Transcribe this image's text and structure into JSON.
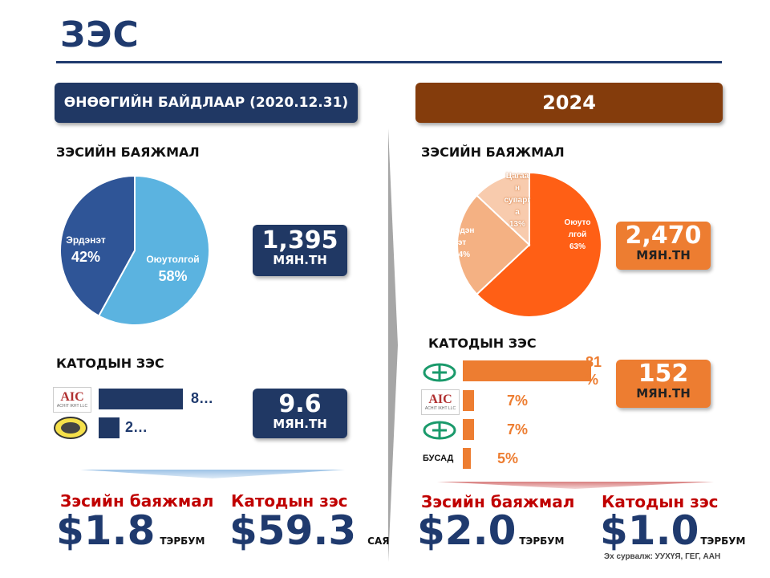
{
  "header": {
    "title": "ЗЭС"
  },
  "left": {
    "banner": "ӨНӨӨГИЙН БАЙДЛААР (2020.12.31)",
    "concentrate_heading": "ЗЭСИЙН БАЯЖМАЛ",
    "concentrate_pie": [
      {
        "name": "Оюутолгой",
        "percent_label": "58%",
        "value": 58,
        "color": "#5bb3e0"
      },
      {
        "name": "Эрдэнэт",
        "percent_label": "42%",
        "value": 42,
        "color": "#2f5597"
      }
    ],
    "concentrate_total": {
      "value": "1,395",
      "unit": "МЯН.ТН"
    },
    "cathode_heading": "КАТОДЫН ЗЭС",
    "cathode_bars": [
      {
        "logo": "AIC",
        "logo_caption": "ACHIT IKHT LLC",
        "label": "8…",
        "value": 80
      },
      {
        "logo": "mining-seal",
        "label": "2…",
        "value": 20
      }
    ],
    "cathode_total": {
      "value": "9.6",
      "unit": "МЯН.ТН"
    },
    "bottom": {
      "concentrate_label": "Зэсийн баяжмал",
      "concentrate_amount": "$1.8",
      "concentrate_unit": "ТЭРБУМ",
      "cathode_label": "Катодын зэс",
      "cathode_amount": "$59.3",
      "cathode_unit": "САЯ"
    }
  },
  "right": {
    "banner": "2024",
    "concentrate_heading": "ЗЭСИЙН БАЯЖМАЛ",
    "concentrate_pie": [
      {
        "name_lines": [
          "Оюуто",
          "лгой"
        ],
        "percent_label": "63%",
        "value": 63,
        "color": "#ff5f15"
      },
      {
        "name_lines": [
          "Эрдэн",
          "эт"
        ],
        "percent_label": "24%",
        "value": 24,
        "color": "#f4b183"
      },
      {
        "name_lines": [
          "Цагаа",
          "н",
          "суварг",
          "а"
        ],
        "percent_label": "13%",
        "value": 13,
        "color": "#f8cbad"
      }
    ],
    "concentrate_total": {
      "value": "2,470",
      "unit": "МЯН.ТН"
    },
    "cathode_heading": "КАТОДЫН ЗЭС",
    "cathode_bars": [
      {
        "logo": "green-logo",
        "label_lines": [
          "81",
          "%"
        ],
        "value": 81
      },
      {
        "logo": "AIC",
        "logo_caption": "ACHIT IKHT LLC",
        "label": "7%",
        "value": 7
      },
      {
        "logo": "green-logo",
        "label": "7%",
        "value": 7
      },
      {
        "logo": "text",
        "logo_text": "БУСАД",
        "label": "5%",
        "value": 5
      }
    ],
    "cathode_total": {
      "value": "152",
      "unit": "МЯН.ТН"
    },
    "bottom": {
      "concentrate_label": "Зэсийн баяжмал",
      "concentrate_amount": "$2.0",
      "concentrate_unit": "ТЭРБУМ",
      "cathode_label": "Катодын зэс",
      "cathode_amount": "$1.0",
      "cathode_unit": "ТЭРБУМ"
    },
    "source": "Эх сурвалж: УУХҮЯ, ГЕГ, ААН"
  },
  "colors": {
    "navy": "#203864",
    "brown": "#843c0c",
    "orange": "#ed7d31",
    "red_label": "#c00000"
  }
}
